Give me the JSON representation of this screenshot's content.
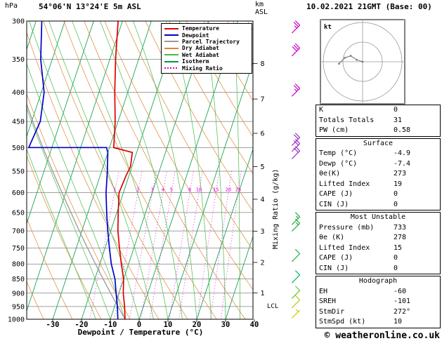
{
  "header": {
    "station": "54°06'N 13°24'E 5m ASL",
    "datetime": "10.02.2021 21GMT (Base: 00)",
    "pressure_unit": "hPa",
    "altitude_unit": "km",
    "altitude_ref": "ASL",
    "copyright": "© weatheronline.co.uk"
  },
  "axes": {
    "xlabel": "Dewpoint / Temperature (°C)",
    "right_axis_label": "Mixing Ratio (g/kg)",
    "lcl_label": "LCL",
    "pressure_ticks": [
      300,
      350,
      400,
      450,
      500,
      550,
      600,
      650,
      700,
      750,
      800,
      850,
      900,
      950,
      1000
    ],
    "temp_ticks": [
      -30,
      -20,
      -10,
      0,
      10,
      20,
      30,
      40
    ],
    "km_ticks": [
      {
        "km": 1,
        "p": 899
      },
      {
        "km": 2,
        "p": 795
      },
      {
        "km": 3,
        "p": 701
      },
      {
        "km": 4,
        "p": 616
      },
      {
        "km": 5,
        "p": 540
      },
      {
        "km": 6,
        "p": 472
      },
      {
        "km": 7,
        "p": 411
      },
      {
        "km": 8,
        "p": 356
      }
    ]
  },
  "legend": [
    {
      "key": "temperature",
      "label": "Temperature",
      "color": "#dd0000",
      "dashed": false
    },
    {
      "key": "dewpoint",
      "label": "Dewpoint",
      "color": "#0000cc",
      "dashed": false
    },
    {
      "key": "parcel",
      "label": "Parcel Trajectory",
      "color": "#999999",
      "dashed": false
    },
    {
      "key": "dry_adiabat",
      "label": "Dry Adiabat",
      "color": "#dd8833",
      "dashed": false
    },
    {
      "key": "wet_adiabat",
      "label": "Wet Adiabat",
      "color": "#44bb44",
      "dashed": false
    },
    {
      "key": "isotherm",
      "label": "Isotherm",
      "color": "#009944",
      "dashed": false
    },
    {
      "key": "mixing_ratio",
      "label": "Mixing Ratio",
      "color": "#dd00dd",
      "dashed": true
    }
  ],
  "chart_data": {
    "type": "line",
    "subtype": "skew-t log-p sounding",
    "pressure_axis": {
      "min": 300,
      "max": 1000,
      "scale": "log",
      "unit": "hPa"
    },
    "temp_axis": {
      "min": -40,
      "max": 40,
      "unit": "°C"
    },
    "series": [
      {
        "name": "Temperature",
        "color_key": "temperature",
        "points": [
          [
            1000,
            -4.9
          ],
          [
            950,
            -6.5
          ],
          [
            900,
            -8.5
          ],
          [
            850,
            -10
          ],
          [
            800,
            -12.5
          ],
          [
            750,
            -15
          ],
          [
            700,
            -17.5
          ],
          [
            650,
            -19.5
          ],
          [
            600,
            -21.5
          ],
          [
            560,
            -21
          ],
          [
            540,
            -20.5
          ],
          [
            510,
            -21.5
          ],
          [
            500,
            -28.5
          ],
          [
            450,
            -31
          ],
          [
            400,
            -34.5
          ],
          [
            350,
            -38
          ],
          [
            300,
            -41.5
          ]
        ]
      },
      {
        "name": "Dewpoint",
        "color_key": "dewpoint",
        "points": [
          [
            1000,
            -7.4
          ],
          [
            950,
            -9
          ],
          [
            900,
            -11
          ],
          [
            850,
            -13
          ],
          [
            800,
            -16
          ],
          [
            750,
            -18.5
          ],
          [
            700,
            -21
          ],
          [
            650,
            -23.5
          ],
          [
            600,
            -26
          ],
          [
            550,
            -28
          ],
          [
            510,
            -30
          ],
          [
            500,
            -31
          ],
          [
            500,
            -58
          ],
          [
            450,
            -57
          ],
          [
            400,
            -59
          ],
          [
            350,
            -64
          ],
          [
            300,
            -68
          ]
        ]
      },
      {
        "name": "Parcel Trajectory",
        "color_key": "parcel",
        "points": [
          [
            1000,
            -4.9
          ],
          [
            950,
            -8.8
          ],
          [
            900,
            -12.9
          ],
          [
            850,
            -17.1
          ],
          [
            800,
            -21.5
          ],
          [
            750,
            -26.1
          ],
          [
            700,
            -30.9
          ],
          [
            650,
            -35.9
          ],
          [
            600,
            -41.3
          ],
          [
            550,
            -47
          ],
          [
            500,
            -53.1
          ],
          [
            450,
            -59.6
          ],
          [
            400,
            -66.6
          ],
          [
            380,
            -69.5
          ]
        ]
      }
    ],
    "isotherms_C": {
      "start": -100,
      "end": 40,
      "step": 10
    },
    "dry_adiabats_theta_K": {
      "start": 240,
      "end": 440,
      "step": 10
    },
    "wet_adiabats_surface_C": {
      "start": -15,
      "end": 40,
      "step": 5
    },
    "mixing_ratio_lines_g_kg": [
      1,
      2,
      3,
      4,
      5,
      8,
      10,
      15,
      20,
      25
    ],
    "mixing_ratio_label_pressure": 600,
    "lcl_pressure": 958,
    "wind_barbs": [
      {
        "p": 310,
        "speed_kt": 25,
        "color": "#cc00cc"
      },
      {
        "p": 340,
        "speed_kt": 30,
        "color": "#cc00cc"
      },
      {
        "p": 400,
        "speed_kt": 25,
        "color": "#cc00cc"
      },
      {
        "p": 488,
        "speed_kt": 20,
        "color": "#9933cc"
      },
      {
        "p": 500,
        "speed_kt": 20,
        "color": "#9933cc"
      },
      {
        "p": 515,
        "speed_kt": 20,
        "color": "#9933cc"
      },
      {
        "p": 672,
        "speed_kt": 15,
        "color": "#22aa44"
      },
      {
        "p": 690,
        "speed_kt": 15,
        "color": "#22aa44"
      },
      {
        "p": 780,
        "speed_kt": 10,
        "color": "#22aa44"
      },
      {
        "p": 850,
        "speed_kt": 10,
        "color": "#00bb66"
      },
      {
        "p": 905,
        "speed_kt": 10,
        "color": "#55cc33"
      },
      {
        "p": 940,
        "speed_kt": 10,
        "color": "#aacc00"
      },
      {
        "p": 980,
        "speed_kt": 5,
        "color": "#cccc00"
      }
    ],
    "hodograph": {
      "unit": "kt",
      "ring_interval_kt": 10,
      "rings": 3,
      "trace_uv_kt": [
        [
          0,
          0
        ],
        [
          -3,
          1
        ],
        [
          -6,
          3
        ],
        [
          -9,
          2
        ],
        [
          -12,
          -1
        ]
      ]
    }
  },
  "stats": {
    "indices": [
      [
        "K",
        "0"
      ],
      [
        "Totals Totals",
        "31"
      ],
      [
        "PW (cm)",
        "0.58"
      ]
    ],
    "sections": [
      {
        "title": "Surface",
        "rows": [
          [
            "Temp (°C)",
            "-4.9"
          ],
          [
            "Dewp (°C)",
            "-7.4"
          ],
          [
            "θe(K)",
            "273"
          ],
          [
            "Lifted Index",
            "19"
          ],
          [
            "CAPE (J)",
            "0"
          ],
          [
            "CIN (J)",
            "0"
          ]
        ]
      },
      {
        "title": "Most Unstable",
        "rows": [
          [
            "Pressure (mb)",
            "733"
          ],
          [
            "θe (K)",
            "278"
          ],
          [
            "Lifted Index",
            "15"
          ],
          [
            "CAPE (J)",
            "0"
          ],
          [
            "CIN (J)",
            "0"
          ]
        ]
      },
      {
        "title": "Hodograph",
        "rows": [
          [
            "EH",
            "-60"
          ],
          [
            "SREH",
            "-101"
          ],
          [
            "StmDir",
            "272°"
          ],
          [
            "StmSpd (kt)",
            "10"
          ]
        ]
      }
    ]
  }
}
